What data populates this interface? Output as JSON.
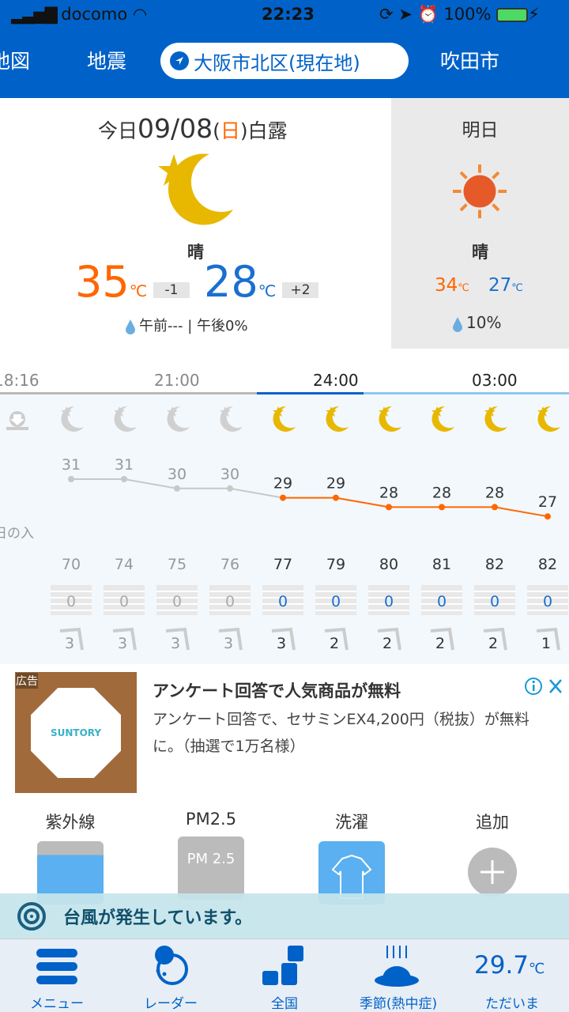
{
  "status": {
    "carrier": "docomo",
    "time": "22:23",
    "battery": "100%"
  },
  "tabs": [
    {
      "label": "地図"
    },
    {
      "label": "地震"
    },
    {
      "label": "大阪市北区(現在地)",
      "active": true
    },
    {
      "label": "吹田市"
    }
  ],
  "today": {
    "prefix": "今日",
    "date": "09/08",
    "weekday_open": "(",
    "weekday": "日",
    "weekday_close": ")",
    "sekki": "白露",
    "weather": "晴",
    "high": "35",
    "high_unit": "℃",
    "high_diff": "-1",
    "low": "28",
    "low_unit": "℃",
    "low_diff": "+2",
    "rain": "午前--- | 午後0%",
    "icon": "moon-star-icon"
  },
  "tomorrow": {
    "label": "明日",
    "weather": "晴",
    "high": "34",
    "low": "27",
    "unit": "℃",
    "rain": "10%",
    "icon": "sun-icon"
  },
  "timeline": {
    "labels": [
      "18:16",
      "21:00",
      "24:00",
      "03:00"
    ],
    "sunset_label": "日の入"
  },
  "hourly": {
    "temps": [
      31,
      31,
      30,
      30,
      29,
      29,
      28,
      28,
      28,
      27
    ],
    "humidity": [
      70,
      74,
      75,
      76,
      77,
      79,
      80,
      81,
      82,
      82
    ],
    "precip": [
      0,
      0,
      0,
      0,
      0,
      0,
      0,
      0,
      0,
      0
    ],
    "wind": [
      3,
      3,
      3,
      3,
      3,
      2,
      2,
      2,
      2,
      1
    ],
    "past_count": 4,
    "colors": {
      "past": "#c8c8c8",
      "future": "#ff6600",
      "moon": "#e8b800",
      "precip": "#1a6fd0"
    }
  },
  "ad": {
    "badge": "広告",
    "brand": "SUNTORY",
    "title": "アンケート回答で人気商品が無料",
    "body": "アンケート回答で、セサミンEX4,200円（税抜）が無料に。（抽選で1万名様）"
  },
  "features": [
    {
      "label": "紫外線"
    },
    {
      "label": "PM2.5",
      "icon_text": "PM 2.5"
    },
    {
      "label": "洗濯"
    },
    {
      "label": "追加"
    }
  ],
  "typhoon": {
    "text": "台風が発生しています。"
  },
  "nav": [
    {
      "label": "メニュー"
    },
    {
      "label": "レーダー"
    },
    {
      "label": "全国"
    },
    {
      "label": "季節(熱中症)"
    },
    {
      "label": "ただいま",
      "temp": "29.7",
      "unit": "℃"
    }
  ]
}
